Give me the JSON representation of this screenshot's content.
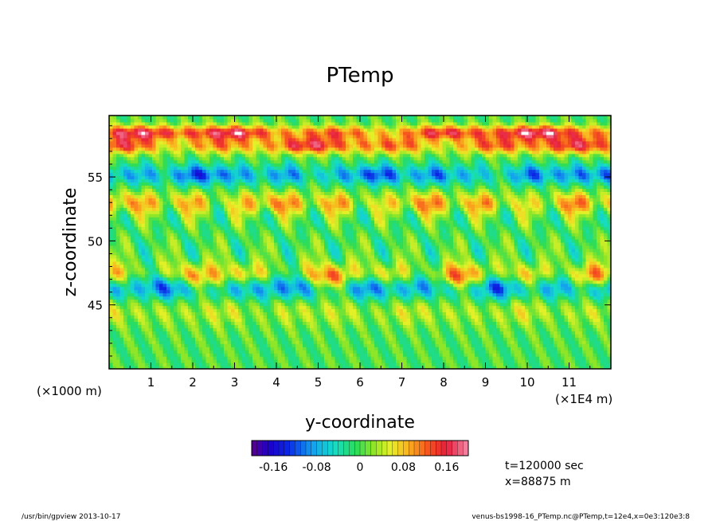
{
  "chart_data": {
    "type": "heatmap",
    "title": "PTemp",
    "xlabel": "y-coordinate",
    "ylabel": "z-coordinate",
    "x_unit": "(×1E4 m)",
    "y_unit": "(×1000 m)",
    "x_ticks": [
      1,
      2,
      3,
      4,
      5,
      6,
      7,
      8,
      9,
      10,
      11
    ],
    "y_ticks": [
      45,
      50,
      55
    ],
    "xlim": [
      0,
      12
    ],
    "ylim": [
      40,
      59.8
    ],
    "colorbar": {
      "range": [
        -0.2,
        0.2
      ],
      "levels": 40,
      "tick_values": [
        -0.16,
        -0.08,
        0,
        0.08,
        0.16
      ],
      "tick_labels": [
        "-0.16",
        "-0.08",
        "0",
        "0.08",
        "0.16"
      ]
    },
    "info": [
      "t=120000 sec",
      "x=88875 m"
    ],
    "bands": [
      {
        "z": 58.5,
        "amplitude": 0.18
      },
      {
        "z": 57.5,
        "amplitude": 0.16
      },
      {
        "z": 55.2,
        "amplitude": -0.12
      },
      {
        "z": 53.0,
        "amplitude": 0.1
      },
      {
        "z": 47.2,
        "amplitude": 0.17
      },
      {
        "z": 46.6,
        "amplitude": -0.17
      },
      {
        "z": 44.5,
        "amplitude": 0.05
      }
    ]
  },
  "footer": {
    "left": "/usr/bin/gpview   2013-10-17",
    "right": "venus-bs1998-16_PTemp.nc@PTemp,t=12e4,x=0e3:120e3:8"
  }
}
